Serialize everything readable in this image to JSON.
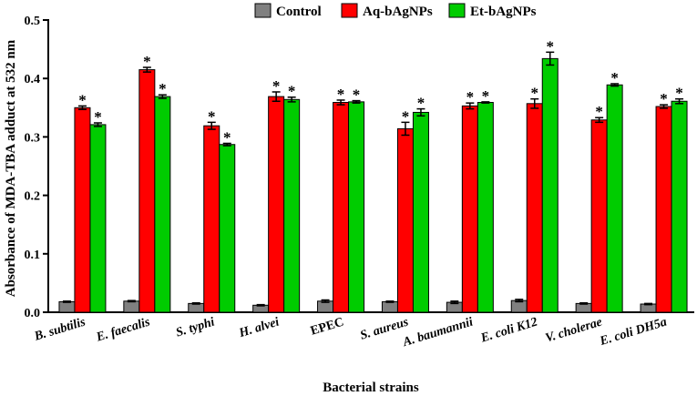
{
  "chart_data": {
    "type": "bar",
    "title": "",
    "xlabel": "Bacterial strains",
    "ylabel": "Absorbance of MDA-TBA adduct at 532 nm",
    "ylim": [
      0,
      0.5
    ],
    "yticks": [
      "0.0",
      "0.1",
      "0.2",
      "0.3",
      "0.4",
      "0.5"
    ],
    "ytick_values": [
      0,
      0.1,
      0.2,
      0.3,
      0.4,
      0.5
    ],
    "legend_position": "top",
    "categories": [
      "B. subtilis",
      "E. faecalis",
      "S. typhi",
      "H. alvei",
      "EPEC",
      "S. aureus",
      "A. baumannii",
      "E. coli K12",
      "V. cholerae",
      "E. coli DH5a"
    ],
    "italic_categories": [
      true,
      true,
      true,
      true,
      false,
      true,
      true,
      true,
      true,
      true
    ],
    "series": [
      {
        "name": "Control",
        "color": "#808080",
        "values": [
          0.018,
          0.019,
          0.015,
          0.012,
          0.019,
          0.018,
          0.017,
          0.02,
          0.015,
          0.014
        ],
        "errors": [
          0.001,
          0.001,
          0.001,
          0.001,
          0.002,
          0.001,
          0.002,
          0.002,
          0.001,
          0.001
        ],
        "significance": [
          "",
          "",
          "",
          "",
          "",
          "",
          "",
          "",
          "",
          ""
        ]
      },
      {
        "name": "Aq-bAgNPs",
        "color": "#ff0000",
        "values": [
          0.35,
          0.415,
          0.319,
          0.369,
          0.359,
          0.314,
          0.353,
          0.357,
          0.329,
          0.352
        ],
        "errors": [
          0.003,
          0.004,
          0.006,
          0.008,
          0.004,
          0.011,
          0.005,
          0.008,
          0.004,
          0.003
        ],
        "significance": [
          "*",
          "*",
          "*",
          "*",
          "*",
          "*",
          "*",
          "*",
          "*",
          "*"
        ]
      },
      {
        "name": "Et-bAgNPs",
        "color": "#00cc00",
        "values": [
          0.321,
          0.369,
          0.287,
          0.364,
          0.36,
          0.342,
          0.359,
          0.434,
          0.389,
          0.361
        ],
        "errors": [
          0.003,
          0.003,
          0.002,
          0.004,
          0.002,
          0.006,
          0.001,
          0.011,
          0.002,
          0.004
        ],
        "significance": [
          "*",
          "*",
          "*",
          "*",
          "*",
          "*",
          "*",
          "*",
          "*",
          "*"
        ]
      }
    ]
  }
}
